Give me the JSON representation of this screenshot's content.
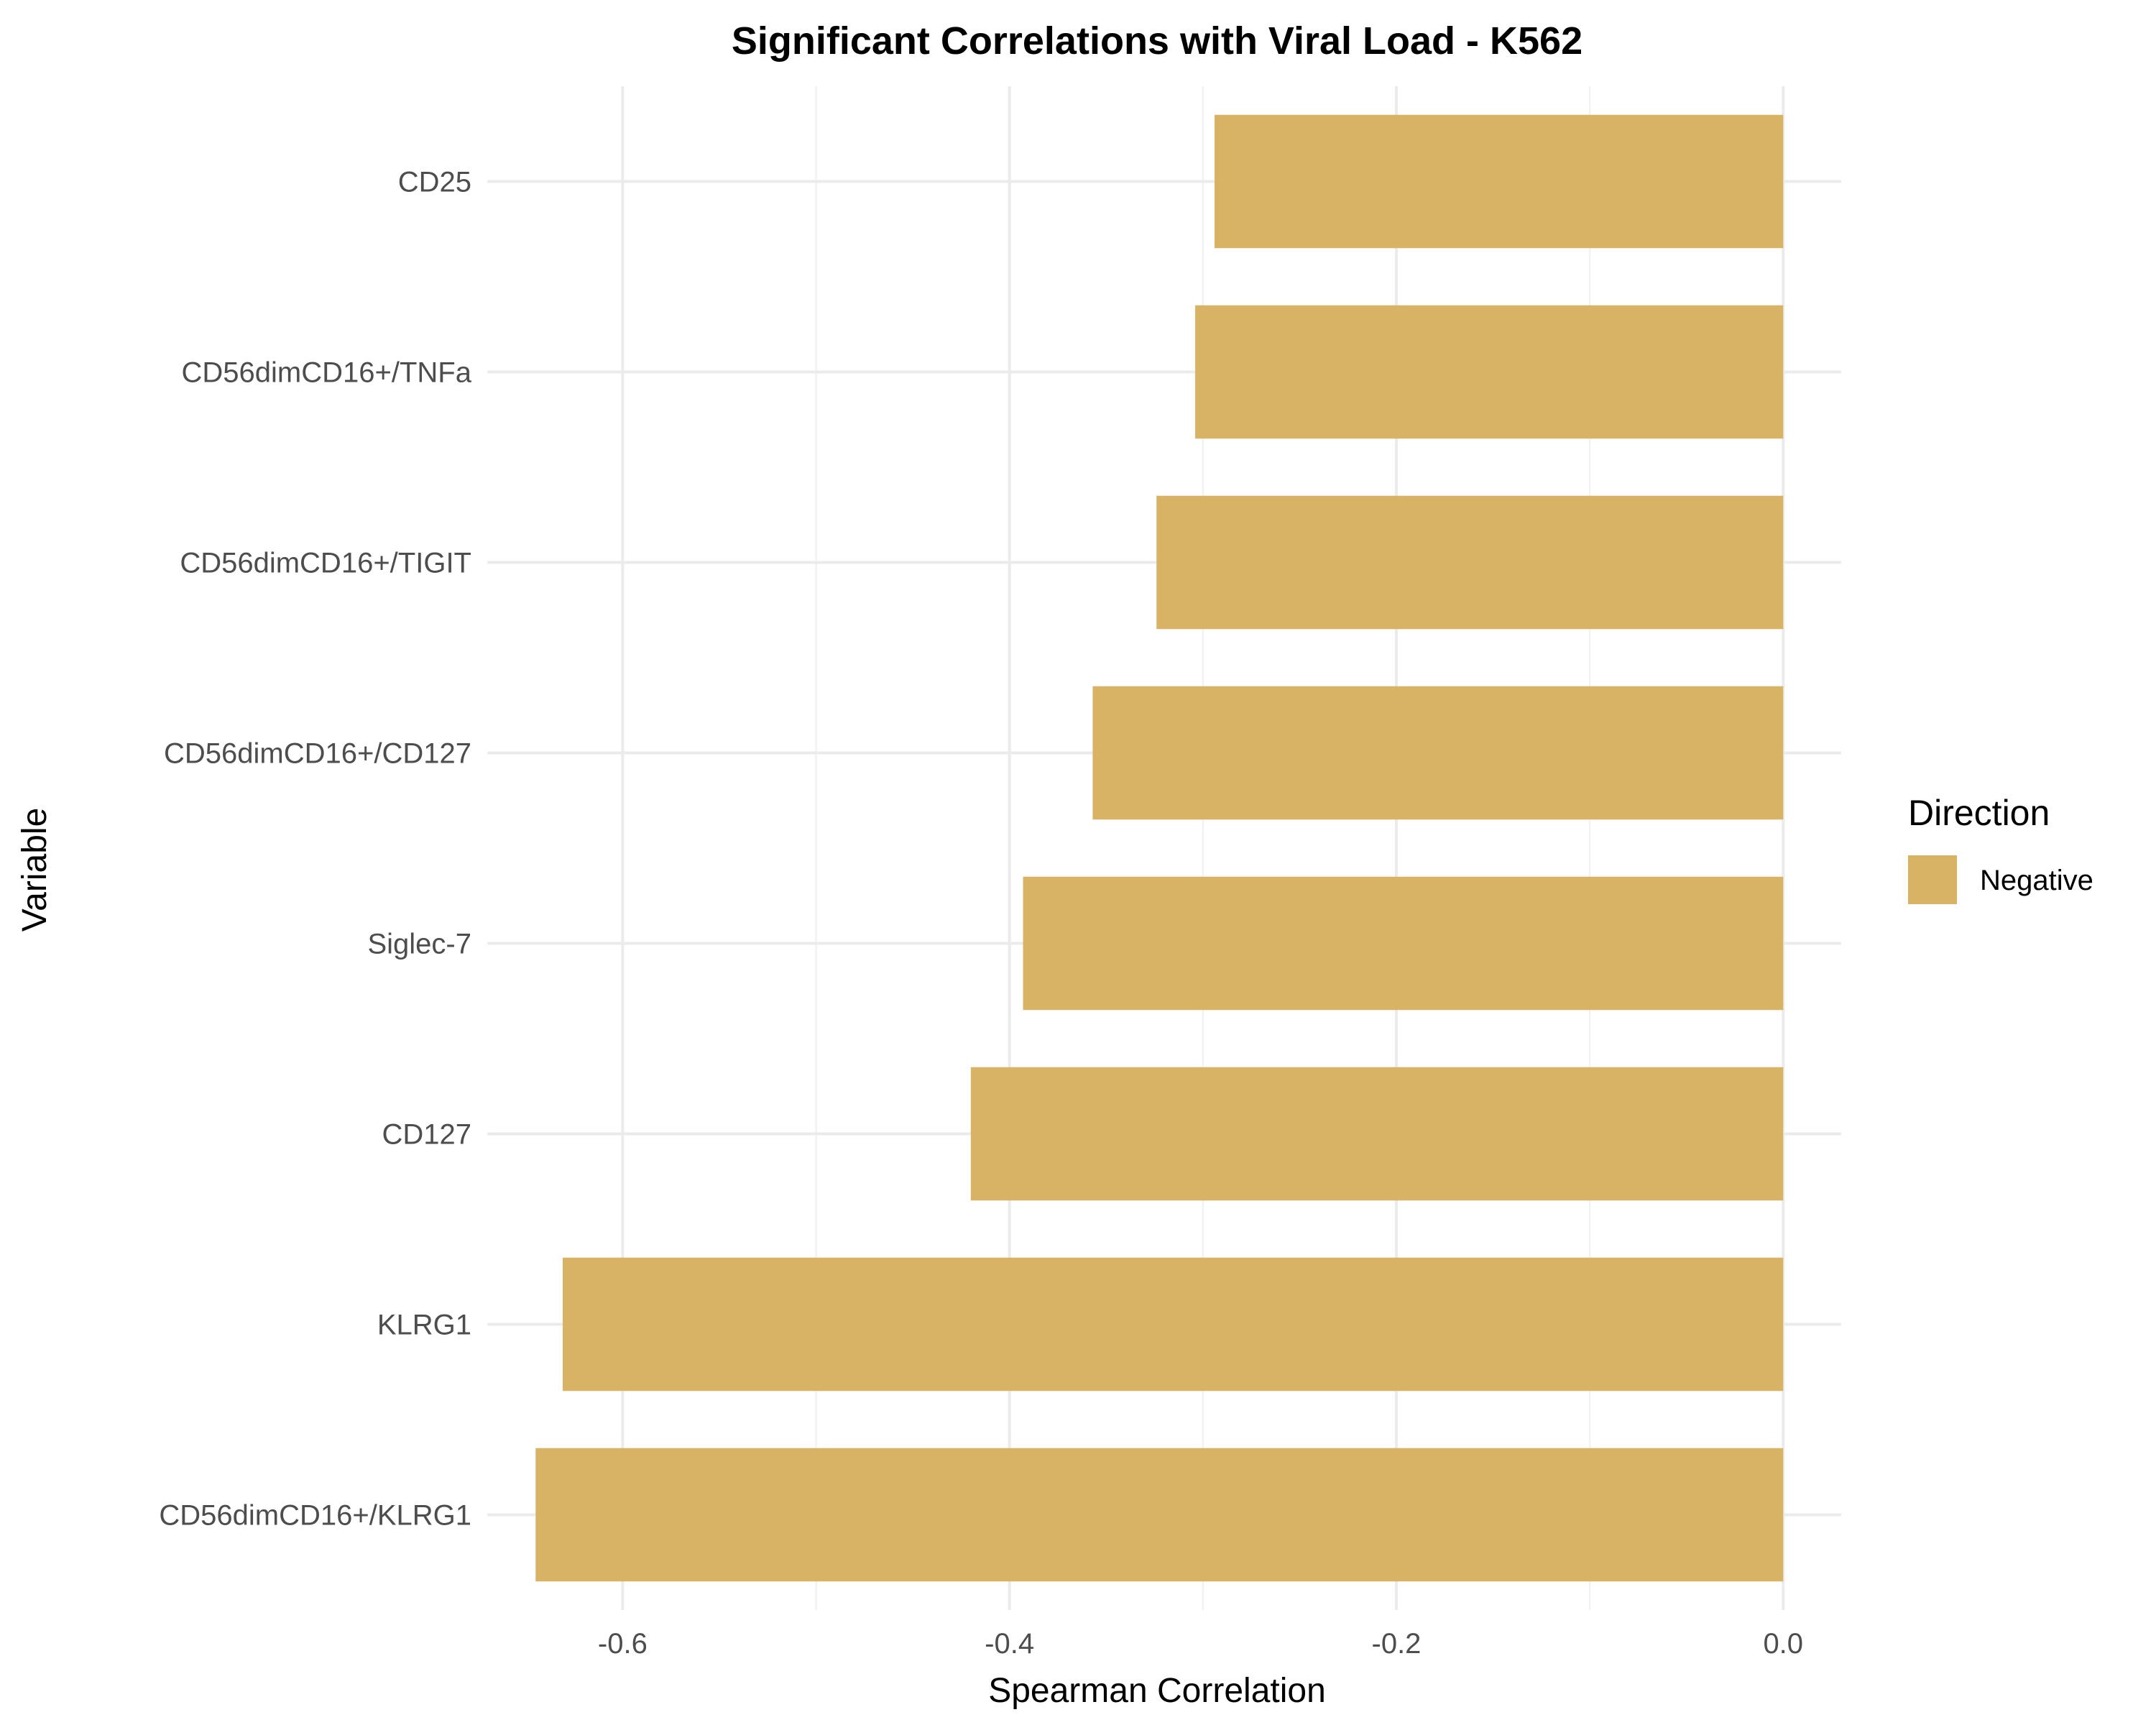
{
  "chart_data": {
    "type": "bar",
    "orientation": "horizontal",
    "title": "Significant Correlations with Viral Load - K562",
    "xlabel": "Spearman Correlation",
    "ylabel": "Variable",
    "xlim": [
      -0.67,
      0.03
    ],
    "x_ticks": [
      -0.6,
      -0.4,
      -0.2,
      0.0
    ],
    "x_tick_labels": [
      "-0.6",
      "-0.4",
      "-0.2",
      "0.0"
    ],
    "grid": true,
    "legend": {
      "title": "Direction",
      "position": "right",
      "entries": [
        {
          "label": "Negative",
          "color": "#d8b365"
        }
      ]
    },
    "categories": [
      "CD25",
      "CD56dimCD16+/TNFa",
      "CD56dimCD16+/TIGIT",
      "CD56dimCD16+/CD127",
      "Siglec-7",
      "CD127",
      "KLRG1",
      "CD56dimCD16+/KLRG1"
    ],
    "series": [
      {
        "name": "Negative",
        "color": "#d8b365",
        "values": [
          -0.294,
          -0.304,
          -0.324,
          -0.357,
          -0.393,
          -0.42,
          -0.631,
          -0.645
        ]
      }
    ]
  }
}
